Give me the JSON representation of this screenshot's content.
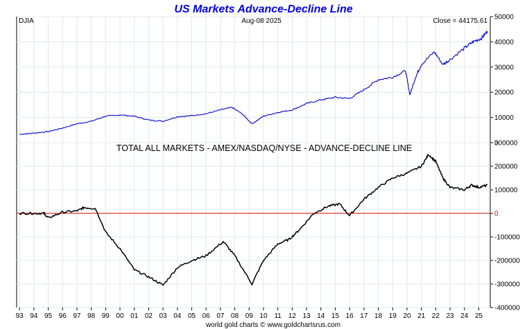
{
  "title": "US Markets Advance-Decline Line",
  "credit": "world gold charts © www.goldchartsrus.com",
  "colors": {
    "title": "#0000ee",
    "djia_line": "#0000cc",
    "ad_line": "#000000",
    "zero_line": "#cc0000",
    "grid": "#e0e8ee",
    "background": "#ffffff"
  },
  "chart_data": [
    {
      "type": "line",
      "panel": "top",
      "series": [
        {
          "name": "DJIA",
          "color": "#0000cc"
        }
      ],
      "label": "DJIA",
      "date_label": "Aug-08 2025",
      "close_label": "Close = 44175.61",
      "x": [
        1993.0,
        1994.0,
        1995.0,
        1996.0,
        1997.0,
        1998.0,
        1999.0,
        2000.0,
        2001.0,
        2002.0,
        2003.0,
        2004.0,
        2005.0,
        2006.0,
        2007.0,
        2007.8,
        2008.5,
        2009.2,
        2010.0,
        2011.0,
        2012.0,
        2013.0,
        2014.0,
        2015.0,
        2016.0,
        2017.0,
        2018.0,
        2019.0,
        2019.9,
        2020.2,
        2020.6,
        2021.0,
        2021.9,
        2022.5,
        2023.0,
        2024.0,
        2024.6,
        2025.2,
        2025.6
      ],
      "y": [
        3300,
        3800,
        4400,
        5800,
        7500,
        8500,
        10500,
        11000,
        10500,
        9000,
        8500,
        10300,
        10700,
        11500,
        13000,
        14000,
        11500,
        7500,
        10500,
        12000,
        13000,
        15500,
        17000,
        18000,
        17500,
        21000,
        25000,
        26000,
        28500,
        19000,
        26000,
        31000,
        36000,
        31000,
        33000,
        37500,
        40000,
        41500,
        44175.61
      ],
      "ylim": [
        0,
        50000
      ],
      "yticks": [
        0,
        10000,
        20000,
        30000,
        40000,
        50000
      ]
    },
    {
      "type": "line",
      "panel": "bottom",
      "title": "TOTAL ALL MARKETS - AMEX/NASDAQ/NYSE - ADVANCE-DECLINE LINE",
      "series": [
        {
          "name": "Advance-Decline Line",
          "color": "#000000"
        }
      ],
      "x": [
        1993.0,
        1994.0,
        1994.7,
        1995.0,
        1996.0,
        1997.0,
        1997.5,
        1998.3,
        1999.0,
        2000.0,
        2001.0,
        2002.0,
        2003.0,
        2004.0,
        2005.0,
        2006.0,
        2007.2,
        2008.0,
        2009.2,
        2010.0,
        2011.0,
        2011.8,
        2012.5,
        2013.5,
        2014.5,
        2015.3,
        2016.0,
        2017.0,
        2018.0,
        2019.0,
        2020.0,
        2021.0,
        2021.5,
        2022.0,
        2022.5,
        2023.0,
        2024.0,
        2024.5,
        2025.0,
        2025.6
      ],
      "y": [
        0,
        0,
        0,
        -20000,
        5000,
        10000,
        25000,
        20000,
        -80000,
        -150000,
        -240000,
        -270000,
        -305000,
        -230000,
        -200000,
        -180000,
        -120000,
        -180000,
        -300000,
        -200000,
        -130000,
        -110000,
        -70000,
        0,
        30000,
        40000,
        -10000,
        60000,
        110000,
        150000,
        170000,
        200000,
        250000,
        220000,
        150000,
        110000,
        100000,
        120000,
        110000,
        120000
      ],
      "ylim": [
        -400000,
        300000
      ],
      "yticks": [
        -400000,
        -300000,
        -200000,
        -100000,
        0,
        100000,
        200000,
        300000
      ],
      "ytick_labels": [
        "-400000",
        "-300000",
        "-200000",
        "-100000",
        "0",
        "100000",
        "200000",
        "300000"
      ],
      "reference_line": 0
    }
  ],
  "x_axis": {
    "xlim": [
      1992.8,
      2025.8
    ],
    "tick_labels": [
      "93",
      "94",
      "95",
      "96",
      "97",
      "98",
      "99",
      "00",
      "01",
      "02",
      "03",
      "04",
      "05",
      "06",
      "07",
      "08",
      "09",
      "10",
      "11",
      "12",
      "13",
      "14",
      "15",
      "16",
      "17",
      "18",
      "19",
      "20",
      "21",
      "22",
      "23",
      "24",
      "25"
    ],
    "tick_years": [
      1993,
      1994,
      1995,
      1996,
      1997,
      1998,
      1999,
      2000,
      2001,
      2002,
      2003,
      2004,
      2005,
      2006,
      2007,
      2008,
      2009,
      2010,
      2011,
      2012,
      2013,
      2014,
      2015,
      2016,
      2017,
      2018,
      2019,
      2020,
      2021,
      2022,
      2023,
      2024,
      2025
    ]
  }
}
